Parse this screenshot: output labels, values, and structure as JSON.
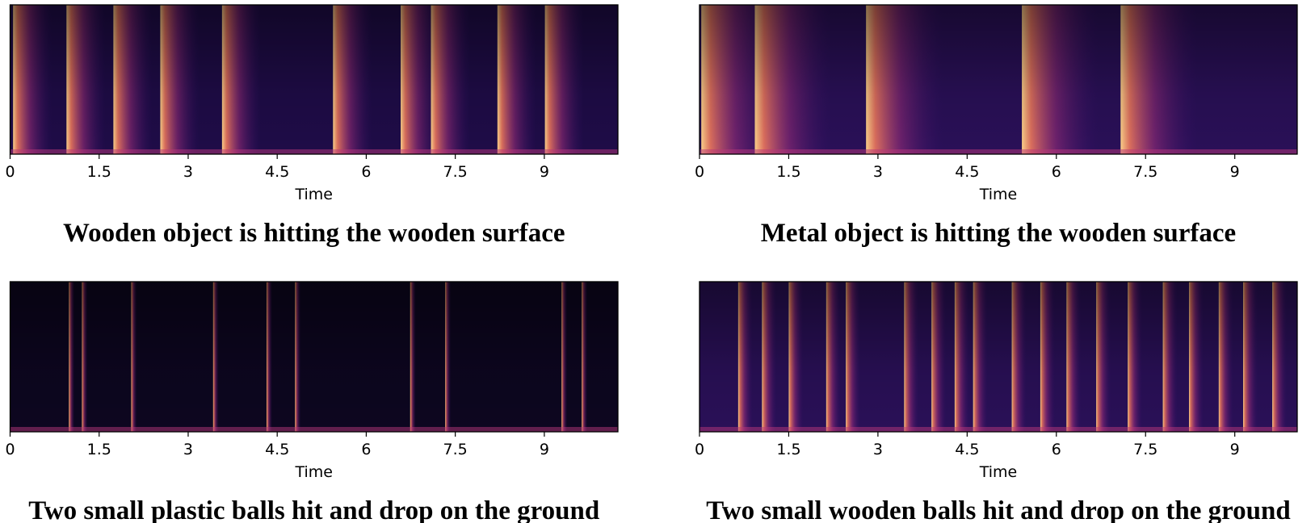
{
  "chart_data": [
    {
      "type": "spectrogram",
      "title": "Wooden object is hitting the wooden surface",
      "xlabel": "Time",
      "xlim": [
        0,
        10.24
      ],
      "xticks": [
        0,
        1.5,
        3,
        4.5,
        6,
        7.5,
        9
      ],
      "onsets": [
        0.05,
        0.95,
        1.74,
        2.53,
        3.57,
        5.44,
        6.58,
        7.09,
        8.21,
        9.01
      ]
    },
    {
      "type": "spectrogram",
      "title": "Metal object is hitting the wooden surface",
      "xlabel": "Time",
      "xlim": [
        0,
        10.05
      ],
      "xticks": [
        0,
        1.5,
        3,
        4.5,
        6,
        7.5,
        9
      ],
      "onsets": [
        0.03,
        0.93,
        2.8,
        5.42,
        7.08
      ]
    },
    {
      "type": "spectrogram",
      "title": "Two small plastic balls hit and drop on the ground",
      "xlabel": "Time",
      "xlim": [
        0,
        10.24
      ],
      "xticks": [
        0,
        1.5,
        3,
        4.5,
        6,
        7.5,
        9
      ],
      "onsets": [
        0.99,
        1.21,
        2.04,
        3.42,
        4.32,
        4.8,
        6.74,
        7.33,
        9.29,
        9.63
      ]
    },
    {
      "type": "spectrogram",
      "title": "Two small wooden balls hit and drop on the ground",
      "xlabel": "Time",
      "xlim": [
        0,
        10.05
      ],
      "xticks": [
        0,
        1.5,
        3,
        4.5,
        6,
        7.5,
        9
      ],
      "onsets": [
        0.65,
        1.05,
        1.5,
        2.13,
        2.46,
        3.44,
        3.9,
        4.29,
        4.6,
        5.25,
        5.73,
        6.17,
        6.67,
        7.2,
        7.79,
        8.23,
        8.73,
        9.14,
        9.63
      ]
    }
  ]
}
